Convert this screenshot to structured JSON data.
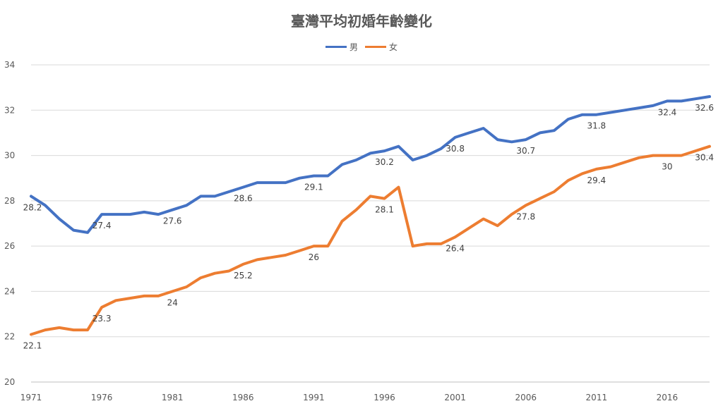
{
  "chart_data": {
    "type": "line",
    "title": "臺灣平均初婚年齡變化",
    "ylim": [
      20,
      34
    ],
    "yticks": [
      "20",
      "22",
      "24",
      "26",
      "28",
      "30",
      "32",
      "34"
    ],
    "xtick_labels": [
      "1971",
      "1976",
      "1981",
      "1986",
      "1991",
      "1996",
      "2001",
      "2006",
      "2011",
      "2016"
    ],
    "grid": true,
    "legend_position": "top-center",
    "x": [
      1971,
      1972,
      1973,
      1974,
      1975,
      1976,
      1977,
      1978,
      1979,
      1980,
      1981,
      1982,
      1983,
      1984,
      1985,
      1986,
      1987,
      1988,
      1989,
      1990,
      1991,
      1992,
      1993,
      1994,
      1995,
      1996,
      1997,
      1998,
      1999,
      2000,
      2001,
      2002,
      2003,
      2004,
      2005,
      2006,
      2007,
      2008,
      2009,
      2010,
      2011,
      2012,
      2013,
      2014,
      2015,
      2016,
      2017,
      2018,
      2019
    ],
    "series": [
      {
        "name": "男",
        "color": "#4472C4",
        "values": [
          28.2,
          27.8,
          27.2,
          26.7,
          26.6,
          27.4,
          27.4,
          27.4,
          27.5,
          27.4,
          27.6,
          27.8,
          28.2,
          28.2,
          28.4,
          28.6,
          28.8,
          28.8,
          28.8,
          29.0,
          29.1,
          29.1,
          29.6,
          29.8,
          30.1,
          30.2,
          30.4,
          29.8,
          30.0,
          30.3,
          30.8,
          31.0,
          31.2,
          30.7,
          30.6,
          30.7,
          31.0,
          31.1,
          31.6,
          31.8,
          31.8,
          31.9,
          32.0,
          32.1,
          32.2,
          32.4,
          32.4,
          32.5,
          32.6
        ],
        "data_labels": [
          {
            "x": 1971,
            "text": "28.2"
          },
          {
            "x": 1976,
            "text": "27.4"
          },
          {
            "x": 1981,
            "text": "27.6"
          },
          {
            "x": 1986,
            "text": "28.6"
          },
          {
            "x": 1991,
            "text": "29.1"
          },
          {
            "x": 1996,
            "text": "30.2"
          },
          {
            "x": 2001,
            "text": "30.8"
          },
          {
            "x": 2006,
            "text": "30.7"
          },
          {
            "x": 2011,
            "text": "31.8"
          },
          {
            "x": 2016,
            "text": "32.4"
          },
          {
            "x": 2019,
            "text": "32.6"
          }
        ]
      },
      {
        "name": "女",
        "color": "#ED7D31",
        "values": [
          22.1,
          22.3,
          22.4,
          22.3,
          22.3,
          23.3,
          23.6,
          23.7,
          23.8,
          23.8,
          24.0,
          24.2,
          24.6,
          24.8,
          24.9,
          25.2,
          25.4,
          25.5,
          25.6,
          25.8,
          26.0,
          26.0,
          27.1,
          27.6,
          28.2,
          28.1,
          28.6,
          26.0,
          26.1,
          26.1,
          26.4,
          26.8,
          27.2,
          26.9,
          27.4,
          27.8,
          28.1,
          28.4,
          28.9,
          29.2,
          29.4,
          29.5,
          29.7,
          29.9,
          30.0,
          30.0,
          30.0,
          30.2,
          30.4
        ],
        "data_labels": [
          {
            "x": 1971,
            "text": "22.1"
          },
          {
            "x": 1976,
            "text": "23.3"
          },
          {
            "x": 1981,
            "text": "24"
          },
          {
            "x": 1986,
            "text": "25.2"
          },
          {
            "x": 1991,
            "text": "26"
          },
          {
            "x": 1996,
            "text": "28.1"
          },
          {
            "x": 2001,
            "text": "26.4"
          },
          {
            "x": 2006,
            "text": "27.8"
          },
          {
            "x": 2011,
            "text": "29.4"
          },
          {
            "x": 2016,
            "text": "30"
          },
          {
            "x": 2019,
            "text": "30.4"
          }
        ]
      }
    ]
  }
}
